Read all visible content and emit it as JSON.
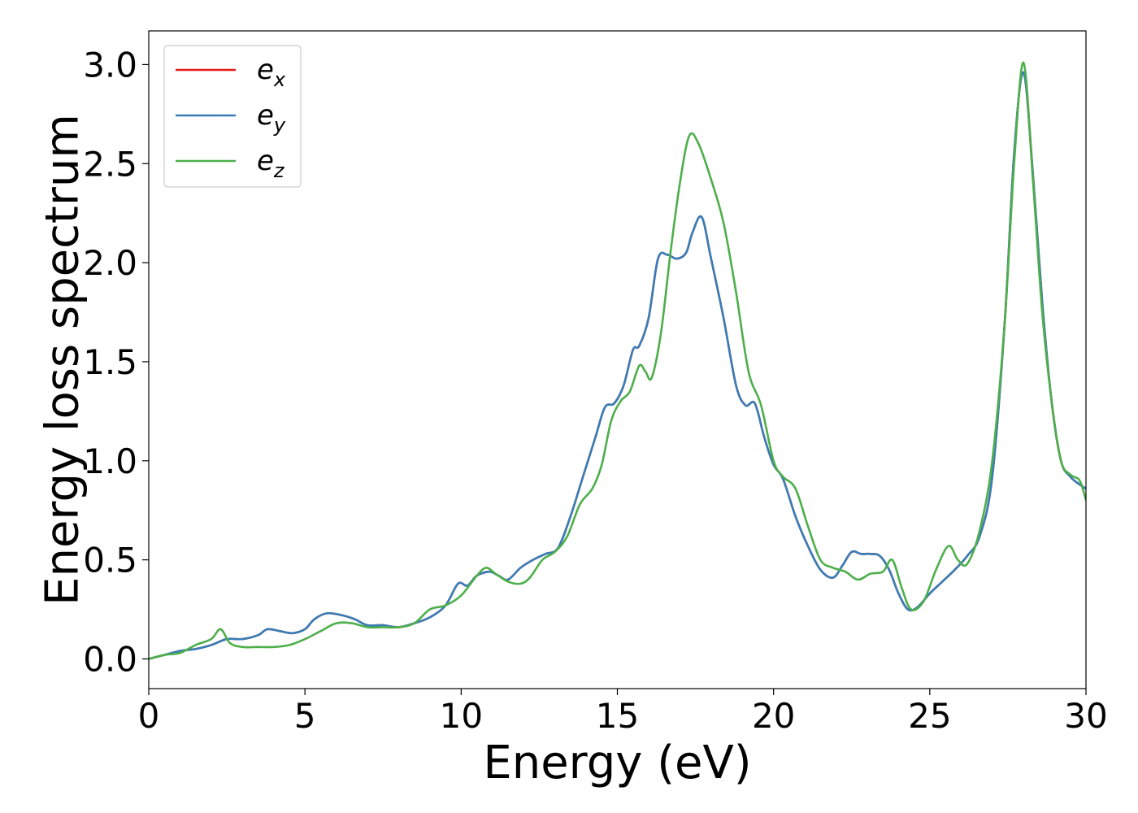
{
  "chart_data": {
    "type": "line",
    "title": "",
    "xlabel": "Energy (eV)",
    "ylabel": "Energy loss spectrum",
    "xlim": [
      0,
      30
    ],
    "ylim": [
      -0.15,
      3.17
    ],
    "xticks": [
      0,
      5,
      10,
      15,
      20,
      25,
      30
    ],
    "xtick_labels": [
      "0",
      "5",
      "10",
      "15",
      "20",
      "25",
      "30"
    ],
    "yticks": [
      0.0,
      0.5,
      1.0,
      1.5,
      2.0,
      2.5,
      3.0
    ],
    "ytick_labels": [
      "0.0",
      "0.5",
      "1.0",
      "1.5",
      "2.0",
      "2.5",
      "3.0"
    ],
    "grid": false,
    "legend_position": "upper-left",
    "series": [
      {
        "name": "e_x",
        "legend_base": "e",
        "legend_sub": "x",
        "color": "#e41a1c",
        "x": [
          0,
          0.5,
          1,
          1.5,
          2,
          2.5,
          3,
          3.5,
          3.8,
          4.2,
          4.6,
          5,
          5.3,
          5.7,
          6.2,
          6.6,
          7,
          7.5,
          8,
          8.5,
          9,
          9.5,
          9.9,
          10.2,
          10.5,
          10.9,
          11.2,
          11.5,
          11.9,
          12.3,
          12.7,
          13.1,
          13.5,
          13.9,
          14.3,
          14.6,
          14.9,
          15.2,
          15.5,
          15.7,
          16,
          16.3,
          16.6,
          16.9,
          17.2,
          17.4,
          17.7,
          18,
          18.4,
          18.8,
          19.1,
          19.4,
          19.7,
          20,
          20.3,
          20.7,
          21.1,
          21.5,
          21.9,
          22.2,
          22.5,
          22.8,
          23.1,
          23.4,
          23.7,
          24,
          24.3,
          24.6,
          25,
          25.4,
          25.8,
          26.2,
          26.6,
          27,
          27.4,
          27.7,
          28,
          28.3,
          28.6,
          28.9,
          29.2,
          29.5,
          29.8,
          30
        ],
        "values": [
          0.0,
          0.02,
          0.04,
          0.05,
          0.07,
          0.1,
          0.1,
          0.12,
          0.15,
          0.14,
          0.13,
          0.15,
          0.2,
          0.23,
          0.22,
          0.2,
          0.17,
          0.17,
          0.16,
          0.18,
          0.21,
          0.27,
          0.38,
          0.37,
          0.42,
          0.44,
          0.42,
          0.4,
          0.46,
          0.5,
          0.53,
          0.56,
          0.72,
          0.92,
          1.12,
          1.27,
          1.29,
          1.38,
          1.56,
          1.58,
          1.72,
          2.02,
          2.04,
          2.02,
          2.05,
          2.15,
          2.23,
          2.02,
          1.72,
          1.38,
          1.28,
          1.29,
          1.12,
          0.98,
          0.91,
          0.72,
          0.57,
          0.45,
          0.41,
          0.47,
          0.54,
          0.53,
          0.53,
          0.52,
          0.45,
          0.33,
          0.25,
          0.26,
          0.33,
          0.39,
          0.45,
          0.52,
          0.62,
          0.92,
          1.7,
          2.55,
          2.96,
          2.45,
          1.8,
          1.3,
          1.0,
          0.92,
          0.88,
          0.86
        ]
      },
      {
        "name": "e_y",
        "legend_base": "e",
        "legend_sub": "y",
        "color": "#377eb8",
        "x": [
          0,
          0.5,
          1,
          1.5,
          2,
          2.5,
          3,
          3.5,
          3.8,
          4.2,
          4.6,
          5,
          5.3,
          5.7,
          6.2,
          6.6,
          7,
          7.5,
          8,
          8.5,
          9,
          9.5,
          9.9,
          10.2,
          10.5,
          10.9,
          11.2,
          11.5,
          11.9,
          12.3,
          12.7,
          13.1,
          13.5,
          13.9,
          14.3,
          14.6,
          14.9,
          15.2,
          15.5,
          15.7,
          16,
          16.3,
          16.6,
          16.9,
          17.2,
          17.4,
          17.7,
          18,
          18.4,
          18.8,
          19.1,
          19.4,
          19.7,
          20,
          20.3,
          20.7,
          21.1,
          21.5,
          21.9,
          22.2,
          22.5,
          22.8,
          23.1,
          23.4,
          23.7,
          24,
          24.3,
          24.6,
          25,
          25.4,
          25.8,
          26.2,
          26.6,
          27,
          27.4,
          27.7,
          28,
          28.3,
          28.6,
          28.9,
          29.2,
          29.5,
          29.8,
          30
        ],
        "values": [
          0.0,
          0.02,
          0.04,
          0.05,
          0.07,
          0.1,
          0.1,
          0.12,
          0.15,
          0.14,
          0.13,
          0.15,
          0.2,
          0.23,
          0.22,
          0.2,
          0.17,
          0.17,
          0.16,
          0.18,
          0.21,
          0.27,
          0.38,
          0.37,
          0.42,
          0.44,
          0.42,
          0.4,
          0.46,
          0.5,
          0.53,
          0.56,
          0.72,
          0.92,
          1.12,
          1.27,
          1.29,
          1.38,
          1.56,
          1.58,
          1.72,
          2.02,
          2.04,
          2.02,
          2.05,
          2.15,
          2.23,
          2.02,
          1.72,
          1.38,
          1.28,
          1.29,
          1.12,
          0.98,
          0.91,
          0.72,
          0.57,
          0.45,
          0.41,
          0.47,
          0.54,
          0.53,
          0.53,
          0.52,
          0.45,
          0.33,
          0.25,
          0.26,
          0.33,
          0.39,
          0.45,
          0.52,
          0.62,
          0.92,
          1.7,
          2.55,
          2.96,
          2.45,
          1.8,
          1.3,
          1.0,
          0.92,
          0.88,
          0.86
        ]
      },
      {
        "name": "e_z",
        "legend_base": "e",
        "legend_sub": "z",
        "color": "#4daf4a",
        "x": [
          0,
          0.5,
          1,
          1.5,
          2,
          2.3,
          2.6,
          3,
          3.5,
          4,
          4.5,
          5,
          5.5,
          6,
          6.5,
          7,
          7.5,
          8,
          8.5,
          9,
          9.5,
          10,
          10.5,
          10.8,
          11.1,
          11.5,
          11.9,
          12.2,
          12.6,
          13,
          13.4,
          13.8,
          14.2,
          14.5,
          14.8,
          15.1,
          15.4,
          15.7,
          15.9,
          16.1,
          16.4,
          16.7,
          17,
          17.3,
          17.6,
          18,
          18.4,
          18.8,
          19.2,
          19.6,
          20,
          20.3,
          20.7,
          21.1,
          21.5,
          21.9,
          22.3,
          22.7,
          23.1,
          23.5,
          23.8,
          24.1,
          24.4,
          24.8,
          25.2,
          25.6,
          25.9,
          26.2,
          26.6,
          27,
          27.4,
          27.7,
          28,
          28.3,
          28.6,
          28.9,
          29.2,
          29.5,
          29.8,
          30
        ],
        "values": [
          0.0,
          0.02,
          0.03,
          0.07,
          0.1,
          0.15,
          0.08,
          0.06,
          0.06,
          0.06,
          0.07,
          0.1,
          0.14,
          0.18,
          0.18,
          0.16,
          0.16,
          0.16,
          0.18,
          0.25,
          0.27,
          0.32,
          0.42,
          0.46,
          0.43,
          0.39,
          0.38,
          0.41,
          0.5,
          0.54,
          0.62,
          0.78,
          0.86,
          0.98,
          1.2,
          1.3,
          1.35,
          1.48,
          1.45,
          1.42,
          1.65,
          2.05,
          2.4,
          2.64,
          2.6,
          2.42,
          2.2,
          1.85,
          1.45,
          1.28,
          1.0,
          0.92,
          0.86,
          0.67,
          0.5,
          0.46,
          0.44,
          0.4,
          0.43,
          0.44,
          0.5,
          0.36,
          0.25,
          0.29,
          0.45,
          0.57,
          0.5,
          0.48,
          0.65,
          1.0,
          1.7,
          2.5,
          3.01,
          2.42,
          1.75,
          1.3,
          1.0,
          0.93,
          0.9,
          0.8
        ]
      }
    ]
  }
}
